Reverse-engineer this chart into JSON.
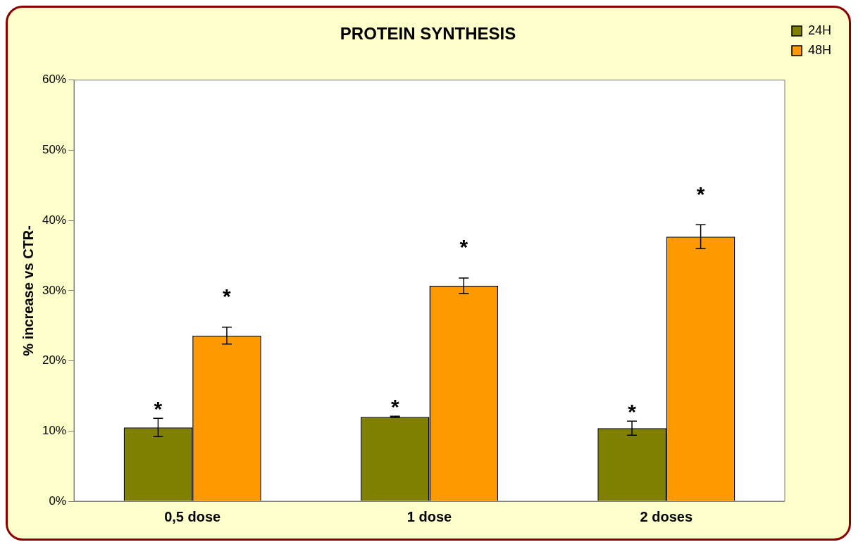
{
  "chart_data": {
    "type": "bar",
    "title": "PROTEIN SYNTHESIS",
    "ylabel": "% increase vs CTR-",
    "categories": [
      "0,5 dose",
      "1 dose",
      "2 doses"
    ],
    "series": [
      {
        "name": "24H",
        "color": "#808000",
        "values": [
          10.5,
          12.0,
          10.4
        ],
        "errors": [
          1.3,
          0.1,
          1.0
        ]
      },
      {
        "name": "48H",
        "color": "#ff9900",
        "values": [
          23.6,
          30.7,
          37.7
        ],
        "errors": [
          1.2,
          1.1,
          1.7
        ]
      }
    ],
    "ylim": [
      0,
      60
    ],
    "yticks": [
      {
        "value": 0,
        "label": "0%"
      },
      {
        "value": 10,
        "label": "10%"
      },
      {
        "value": 20,
        "label": "20%"
      },
      {
        "value": 30,
        "label": "30%"
      },
      {
        "value": 40,
        "label": "40%"
      },
      {
        "value": 50,
        "label": "50%"
      },
      {
        "value": 60,
        "label": "60%"
      }
    ],
    "grid": false,
    "legend": "top right",
    "annotations": [
      "*",
      "*",
      "*",
      "*",
      "*",
      "*"
    ]
  }
}
